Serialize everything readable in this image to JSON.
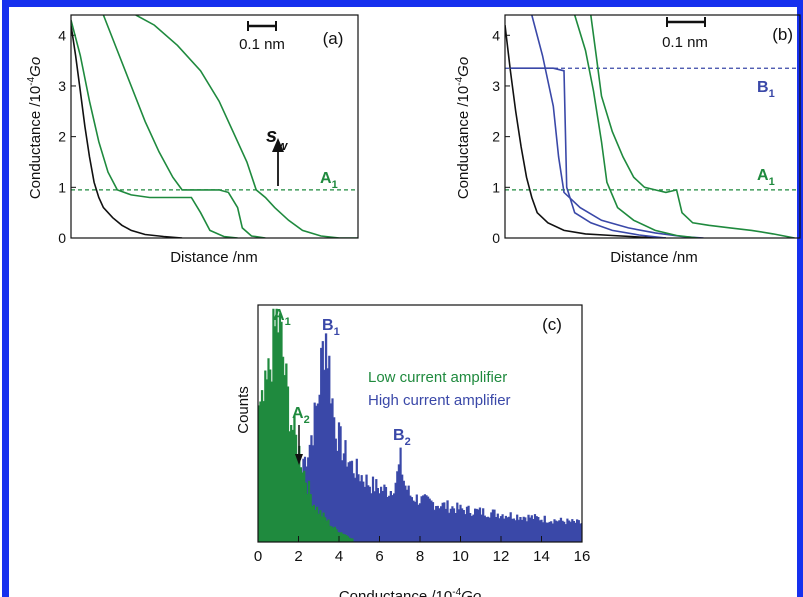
{
  "frame": {
    "border_color": "#1630ee"
  },
  "colors": {
    "green": "#1f8a3e",
    "blue": "#3a48a8",
    "black": "#111111"
  },
  "panels": {
    "a": {
      "label": "(a)",
      "ylabel_main": "Conductance /10",
      "ylabel_exp": "-4",
      "ylabel_unit": "Go",
      "xlabel": "Distance /nm",
      "scale_bar": "0.1 nm",
      "y_ticks": [
        "0",
        "1",
        "2",
        "3",
        "4"
      ],
      "level_label": {
        "main": "A",
        "sub": "1"
      },
      "sw_label": {
        "main": "s",
        "sub": "w"
      }
    },
    "b": {
      "label": "(b)",
      "ylabel_main": "Conductance /10",
      "ylabel_exp": "-4",
      "ylabel_unit": "Go",
      "xlabel": "Distance /nm",
      "scale_bar": "0.1 nm",
      "y_ticks": [
        "0",
        "1",
        "2",
        "3",
        "4"
      ],
      "level_label_a": {
        "main": "A",
        "sub": "1"
      },
      "level_label_b": {
        "main": "B",
        "sub": "1"
      }
    },
    "c": {
      "label": "(c)",
      "ylabel": "Counts",
      "xlabel_main": "Conductance /10",
      "xlabel_exp": "-4",
      "xlabel_unit": "Go",
      "x_ticks": [
        "0",
        "2",
        "4",
        "6",
        "8",
        "10",
        "12",
        "14",
        "16"
      ],
      "legend_green": "Low current amplifier",
      "legend_blue": "High current amplifier",
      "peak_a1": {
        "main": "A",
        "sub": "1"
      },
      "peak_a2": {
        "main": "A",
        "sub": "2"
      },
      "peak_b1": {
        "main": "B",
        "sub": "1"
      },
      "peak_b2": {
        "main": "B",
        "sub": "2"
      }
    }
  },
  "chart_data": [
    {
      "type": "line",
      "panel": "a",
      "xlabel": "Distance /nm",
      "ylabel": "Conductance /10^-4 Go",
      "ylim": [
        0,
        4.4
      ],
      "reference_line": {
        "y": 0.95,
        "label": "A1",
        "style": "dashed"
      },
      "annotation": {
        "label": "sw",
        "x": 0.8,
        "y": 0.95
      },
      "series": [
        {
          "color": "black",
          "points": [
            [
              0.0,
              4.2
            ],
            [
              0.02,
              3.6
            ],
            [
              0.04,
              2.9
            ],
            [
              0.06,
              2.2
            ],
            [
              0.08,
              1.6
            ],
            [
              0.1,
              1.1
            ],
            [
              0.12,
              0.8
            ],
            [
              0.14,
              0.6
            ],
            [
              0.18,
              0.4
            ],
            [
              0.22,
              0.25
            ],
            [
              0.26,
              0.15
            ],
            [
              0.32,
              0.07
            ],
            [
              0.4,
              0.03
            ],
            [
              0.48,
              0.0
            ]
          ]
        },
        {
          "color": "green",
          "points": [
            [
              0.0,
              4.3
            ],
            [
              0.04,
              3.6
            ],
            [
              0.08,
              2.7
            ],
            [
              0.12,
              1.9
            ],
            [
              0.16,
              1.3
            ],
            [
              0.2,
              0.95
            ],
            [
              0.26,
              0.85
            ],
            [
              0.34,
              0.8
            ],
            [
              0.44,
              0.8
            ],
            [
              0.52,
              0.8
            ],
            [
              0.56,
              0.5
            ],
            [
              0.6,
              0.15
            ],
            [
              0.66,
              0.03
            ],
            [
              0.72,
              0.0
            ]
          ]
        },
        {
          "color": "green",
          "points": [
            [
              0.14,
              4.4
            ],
            [
              0.2,
              3.7
            ],
            [
              0.26,
              3.0
            ],
            [
              0.32,
              2.3
            ],
            [
              0.38,
              1.7
            ],
            [
              0.44,
              1.2
            ],
            [
              0.48,
              0.95
            ],
            [
              0.56,
              0.95
            ],
            [
              0.64,
              0.95
            ],
            [
              0.68,
              0.9
            ],
            [
              0.72,
              0.6
            ],
            [
              0.74,
              0.2
            ],
            [
              0.78,
              0.04
            ],
            [
              0.84,
              0.0
            ]
          ]
        },
        {
          "color": "green",
          "points": [
            [
              0.28,
              4.4
            ],
            [
              0.36,
              4.2
            ],
            [
              0.46,
              3.8
            ],
            [
              0.56,
              3.3
            ],
            [
              0.64,
              2.7
            ],
            [
              0.7,
              2.1
            ],
            [
              0.76,
              1.5
            ],
            [
              0.8,
              0.95
            ],
            [
              0.84,
              0.8
            ],
            [
              0.88,
              0.6
            ],
            [
              0.94,
              0.35
            ],
            [
              1.0,
              0.15
            ],
            [
              1.08,
              0.04
            ],
            [
              1.16,
              0.0
            ],
            [
              1.24,
              0.0
            ]
          ]
        }
      ]
    },
    {
      "type": "line",
      "panel": "b",
      "xlabel": "Distance /nm",
      "ylabel": "Conductance /10^-4 Go",
      "ylim": [
        0,
        4.4
      ],
      "reference_lines": [
        {
          "y": 3.35,
          "label": "B1",
          "style": "dashed"
        },
        {
          "y": 0.95,
          "label": "A1",
          "style": "dashed"
        }
      ],
      "series": [
        {
          "color": "black",
          "points": [
            [
              0.0,
              4.2
            ],
            [
              0.02,
              3.3
            ],
            [
              0.04,
              2.5
            ],
            [
              0.06,
              1.8
            ],
            [
              0.08,
              1.2
            ],
            [
              0.1,
              0.8
            ],
            [
              0.12,
              0.5
            ],
            [
              0.16,
              0.3
            ],
            [
              0.22,
              0.15
            ],
            [
              0.3,
              0.08
            ],
            [
              0.4,
              0.05
            ],
            [
              0.5,
              0.02
            ],
            [
              0.6,
              0.0
            ]
          ]
        },
        {
          "color": "blue",
          "points": [
            [
              0.02,
              3.35
            ],
            [
              0.06,
              3.35
            ],
            [
              0.12,
              3.35
            ],
            [
              0.18,
              3.35
            ],
            [
              0.22,
              3.3
            ],
            [
              0.23,
              1.0
            ],
            [
              0.26,
              0.5
            ],
            [
              0.32,
              0.3
            ],
            [
              0.4,
              0.15
            ],
            [
              0.5,
              0.06
            ],
            [
              0.6,
              0.0
            ]
          ]
        },
        {
          "color": "blue",
          "points": [
            [
              0.1,
              4.4
            ],
            [
              0.14,
              3.6
            ],
            [
              0.18,
              2.6
            ],
            [
              0.2,
              1.6
            ],
            [
              0.22,
              0.9
            ],
            [
              0.28,
              0.6
            ],
            [
              0.36,
              0.35
            ],
            [
              0.46,
              0.2
            ],
            [
              0.56,
              0.1
            ],
            [
              0.66,
              0.03
            ],
            [
              0.74,
              0.0
            ]
          ]
        },
        {
          "color": "green",
          "points": [
            [
              0.26,
              4.4
            ],
            [
              0.3,
              3.7
            ],
            [
              0.33,
              2.9
            ],
            [
              0.36,
              1.9
            ],
            [
              0.38,
              1.1
            ],
            [
              0.42,
              0.6
            ],
            [
              0.48,
              0.35
            ],
            [
              0.56,
              0.15
            ],
            [
              0.64,
              0.05
            ],
            [
              0.72,
              0.0
            ]
          ]
        },
        {
          "color": "green",
          "points": [
            [
              0.32,
              4.4
            ],
            [
              0.34,
              3.6
            ],
            [
              0.36,
              2.8
            ],
            [
              0.4,
              2.1
            ],
            [
              0.44,
              1.6
            ],
            [
              0.48,
              1.2
            ],
            [
              0.52,
              1.0
            ],
            [
              0.56,
              0.95
            ],
            [
              0.6,
              0.9
            ],
            [
              0.64,
              0.95
            ],
            [
              0.66,
              0.5
            ],
            [
              0.7,
              0.3
            ],
            [
              0.76,
              0.25
            ],
            [
              0.84,
              0.2
            ],
            [
              0.92,
              0.15
            ],
            [
              1.0,
              0.08
            ],
            [
              1.08,
              0.0
            ]
          ]
        }
      ]
    },
    {
      "type": "histogram",
      "panel": "c",
      "xlabel": "Conductance /10^-4 Go",
      "ylabel": "Counts",
      "xlim": [
        0,
        16
      ],
      "peaks": [
        {
          "label": "A1",
          "x": 1.0
        },
        {
          "label": "A2",
          "x": 2.0
        },
        {
          "label": "B1",
          "x": 3.3
        },
        {
          "label": "B2",
          "x": 7.0
        }
      ],
      "series": [
        {
          "name": "Low current amplifier",
          "color": "green",
          "x": [
            0.1,
            0.3,
            0.5,
            0.7,
            0.9,
            1.1,
            1.3,
            1.5,
            1.7,
            1.9,
            2.1,
            2.3,
            2.5,
            2.7,
            2.9,
            3.1,
            3.3,
            3.5,
            3.7,
            3.9,
            4.1,
            4.3,
            4.5,
            4.7
          ],
          "y": [
            0.55,
            0.62,
            0.72,
            0.86,
            0.97,
            0.88,
            0.72,
            0.58,
            0.48,
            0.42,
            0.36,
            0.28,
            0.22,
            0.17,
            0.14,
            0.12,
            0.1,
            0.08,
            0.06,
            0.05,
            0.04,
            0.03,
            0.02,
            0.01
          ]
        },
        {
          "name": "High current amplifier",
          "color": "blue",
          "x": [
            2.3,
            2.5,
            2.7,
            2.9,
            3.1,
            3.3,
            3.5,
            3.7,
            3.9,
            4.2,
            4.6,
            5.0,
            5.5,
            6.0,
            6.5,
            6.8,
            7.0,
            7.2,
            7.5,
            8.0,
            9.0,
            10.0,
            11.0,
            12.0,
            13.0,
            14.0,
            15.0,
            16.0
          ],
          "y": [
            0.36,
            0.42,
            0.5,
            0.6,
            0.78,
            0.92,
            0.74,
            0.55,
            0.46,
            0.39,
            0.33,
            0.29,
            0.25,
            0.23,
            0.22,
            0.27,
            0.35,
            0.25,
            0.2,
            0.18,
            0.16,
            0.14,
            0.13,
            0.12,
            0.11,
            0.1,
            0.09,
            0.08
          ]
        }
      ]
    }
  ]
}
